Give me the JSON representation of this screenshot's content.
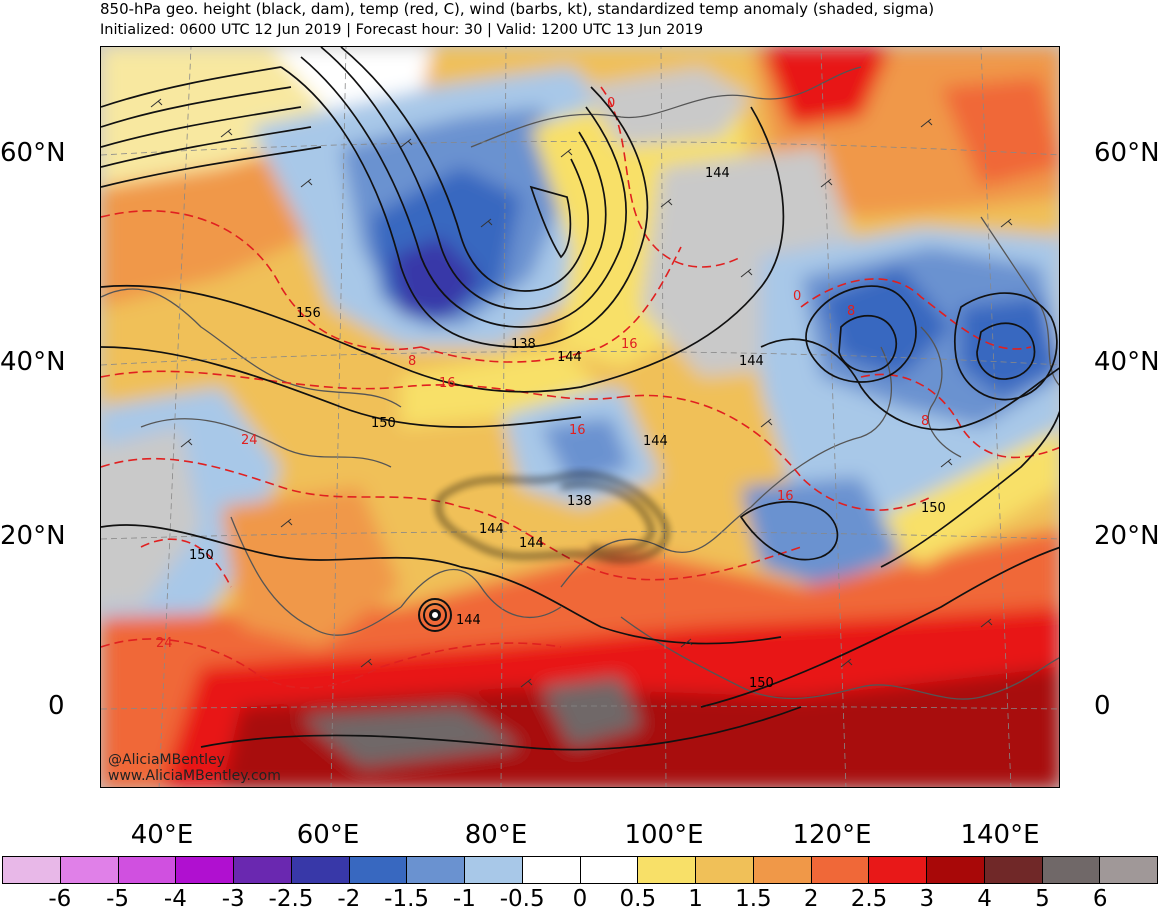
{
  "header": {
    "title": "850-hPa geo. height (black, dam), temp (red, C), wind (barbs, kt), standardized temp anomaly (shaded, sigma)",
    "subtitle": "Initialized: 0600 UTC 12 Jun 2019 | Forecast hour: 30 | Valid: 1200 UTC 13 Jun 2019"
  },
  "axes": {
    "lat_left": [
      "60°N",
      "40°N",
      "20°N",
      "0"
    ],
    "lat_right": [
      "60°N",
      "40°N",
      "20°N",
      "0"
    ],
    "lon": [
      "40°E",
      "60°E",
      "80°E",
      "100°E",
      "120°E",
      "140°E"
    ]
  },
  "contour_labels": {
    "height": [
      "156",
      "138",
      "144",
      "144",
      "144",
      "150",
      "144",
      "138",
      "144",
      "144",
      "144",
      "150",
      "150",
      "150"
    ],
    "temp": [
      "0",
      "0",
      "8",
      "16",
      "16",
      "24",
      "8",
      "16",
      "16",
      "24",
      "8"
    ]
  },
  "credits": {
    "twitter": "@AliciaMBentley",
    "website": "www.AliciaMBentley.com"
  },
  "colorbar": {
    "colors": [
      "#e8b8e8",
      "#e080e8",
      "#d050e0",
      "#b010d0",
      "#6a28b0",
      "#3838a8",
      "#3868c0",
      "#6a92d0",
      "#a8c8e8",
      "#ffffff",
      "#ffffff",
      "#f8e068",
      "#f0c058",
      "#f09848",
      "#f06838",
      "#e81818",
      "#a80808",
      "#702828",
      "#706868",
      "#a09898"
    ],
    "labels": [
      "-6",
      "-5",
      "-4",
      "-3",
      "-2.5",
      "-2",
      "-1.5",
      "-1",
      "-0.5",
      "0",
      "0.5",
      "1",
      "1.5",
      "2",
      "2.5",
      "3",
      "4",
      "5",
      "6"
    ]
  }
}
